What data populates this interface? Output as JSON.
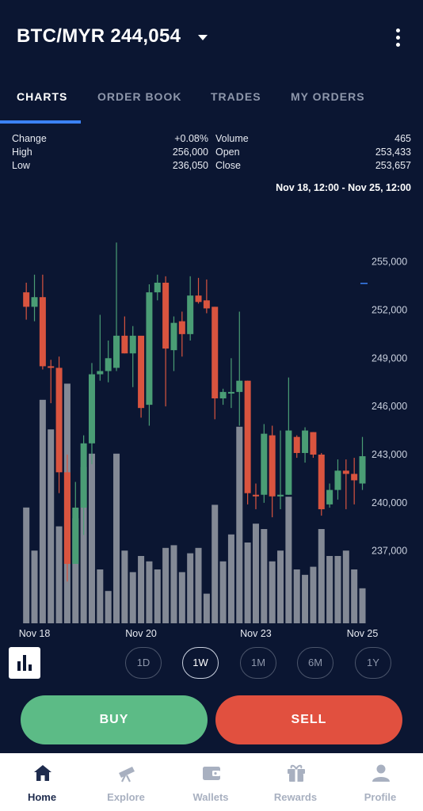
{
  "header": {
    "title": "BTC/MYR 244,054",
    "menu_icon": "more-vertical-icon",
    "caret_icon": "caret-down-icon"
  },
  "tabs": [
    {
      "label": "CHARTS",
      "active": true
    },
    {
      "label": "ORDER BOOK",
      "active": false
    },
    {
      "label": "TRADES",
      "active": false
    },
    {
      "label": "MY ORDERS",
      "active": false
    }
  ],
  "stats": {
    "change_label": "Change",
    "change_value": "+0.08%",
    "high_label": "High",
    "high_value": "256,000",
    "low_label": "Low",
    "low_value": "236,050",
    "volume_label": "Volume",
    "volume_value": "465",
    "open_label": "Open",
    "open_value": "253,433",
    "close_label": "Close",
    "close_value": "253,657"
  },
  "range_text": "Nov 18, 12:00 - Nov 25, 12:00",
  "chart_data": {
    "type": "candlestick",
    "y_ticks": [
      "255,000",
      "252,000",
      "249,000",
      "246,000",
      "243,000",
      "240,000",
      "237,000"
    ],
    "y_tick_values": [
      255000,
      252000,
      249000,
      246000,
      243000,
      240000,
      237000
    ],
    "ylim": [
      232500,
      257000
    ],
    "x_ticks": [
      {
        "label": "Nov 18",
        "index": 1
      },
      {
        "label": "Nov 20",
        "index": 14
      },
      {
        "label": "Nov 23",
        "index": 28
      },
      {
        "label": "Nov 25",
        "index": 41
      }
    ],
    "colors": {
      "up": "#4a9d75",
      "down": "#d9543f",
      "volume": "#8a8f9b"
    },
    "candles": [
      {
        "o": 253100,
        "c": 252200,
        "h": 253700,
        "l": 251400,
        "v": 0.43
      },
      {
        "o": 252200,
        "c": 252800,
        "h": 254200,
        "l": 251300,
        "v": 0.27
      },
      {
        "o": 252800,
        "c": 248500,
        "h": 254200,
        "l": 248300,
        "v": 0.83
      },
      {
        "o": 248500,
        "c": 248400,
        "h": 248900,
        "l": 246200,
        "v": 0.72
      },
      {
        "o": 248400,
        "c": 241900,
        "h": 249100,
        "l": 240600,
        "v": 0.36
      },
      {
        "o": 241900,
        "c": 236200,
        "h": 243000,
        "l": 235100,
        "v": 0.89
      },
      {
        "o": 236200,
        "c": 239700,
        "h": 241300,
        "l": 236200,
        "v": 0.39
      },
      {
        "o": 239700,
        "c": 243700,
        "h": 244200,
        "l": 238000,
        "v": 0.58
      },
      {
        "o": 243700,
        "c": 248000,
        "h": 248700,
        "l": 242400,
        "v": 0.63
      },
      {
        "o": 248000,
        "c": 248200,
        "h": 251700,
        "l": 247600,
        "v": 0.2
      },
      {
        "o": 248200,
        "c": 249000,
        "h": 250100,
        "l": 247500,
        "v": 0.12
      },
      {
        "o": 248400,
        "c": 250400,
        "h": 256200,
        "l": 248200,
        "v": 0.63
      },
      {
        "o": 250400,
        "c": 249300,
        "h": 251600,
        "l": 249300,
        "v": 0.27
      },
      {
        "o": 249300,
        "c": 250400,
        "h": 251000,
        "l": 247200,
        "v": 0.19
      },
      {
        "o": 250400,
        "c": 245900,
        "h": 250300,
        "l": 245300,
        "v": 0.25
      },
      {
        "o": 246100,
        "c": 253100,
        "h": 253600,
        "l": 244800,
        "v": 0.23
      },
      {
        "o": 253100,
        "c": 253700,
        "h": 254200,
        "l": 252600,
        "v": 0.2
      },
      {
        "o": 253700,
        "c": 249600,
        "h": 254100,
        "l": 246000,
        "v": 0.28
      },
      {
        "o": 249500,
        "c": 251200,
        "h": 251600,
        "l": 248200,
        "v": 0.29
      },
      {
        "o": 251300,
        "c": 250500,
        "h": 251900,
        "l": 249100,
        "v": 0.19
      },
      {
        "o": 250500,
        "c": 252900,
        "h": 254100,
        "l": 250100,
        "v": 0.26
      },
      {
        "o": 252900,
        "c": 252500,
        "h": 254000,
        "l": 252400,
        "v": 0.28
      },
      {
        "o": 252600,
        "c": 252100,
        "h": 253900,
        "l": 251800,
        "v": 0.11
      },
      {
        "o": 252200,
        "c": 246500,
        "h": 252200,
        "l": 245200,
        "v": 0.44
      },
      {
        "o": 246500,
        "c": 246900,
        "h": 247100,
        "l": 246100,
        "v": 0.23
      },
      {
        "o": 246800,
        "c": 246900,
        "h": 249000,
        "l": 245900,
        "v": 0.33
      },
      {
        "o": 246900,
        "c": 247600,
        "h": 251900,
        "l": 244800,
        "v": 0.73
      },
      {
        "o": 247600,
        "c": 240600,
        "h": 247600,
        "l": 239900,
        "v": 0.3
      },
      {
        "o": 240500,
        "c": 240400,
        "h": 241200,
        "l": 239600,
        "v": 0.37
      },
      {
        "o": 240500,
        "c": 244300,
        "h": 244900,
        "l": 240000,
        "v": 0.35
      },
      {
        "o": 244200,
        "c": 240400,
        "h": 244800,
        "l": 239100,
        "v": 0.23
      },
      {
        "o": 240400,
        "c": 240500,
        "h": 244500,
        "l": 239600,
        "v": 0.27
      },
      {
        "o": 240500,
        "c": 244500,
        "h": 247800,
        "l": 240500,
        "v": 0.47
      },
      {
        "o": 244100,
        "c": 243100,
        "h": 244200,
        "l": 242800,
        "v": 0.2
      },
      {
        "o": 243100,
        "c": 244500,
        "h": 244700,
        "l": 242500,
        "v": 0.18
      },
      {
        "o": 244400,
        "c": 243000,
        "h": 244400,
        "l": 242800,
        "v": 0.21
      },
      {
        "o": 243000,
        "c": 239600,
        "h": 243100,
        "l": 239200,
        "v": 0.35
      },
      {
        "o": 239900,
        "c": 240800,
        "h": 241200,
        "l": 239700,
        "v": 0.25
      },
      {
        "o": 240800,
        "c": 242000,
        "h": 242700,
        "l": 240200,
        "v": 0.25
      },
      {
        "o": 242000,
        "c": 241800,
        "h": 242700,
        "l": 239600,
        "v": 0.27
      },
      {
        "o": 241800,
        "c": 241400,
        "h": 242800,
        "l": 239900,
        "v": 0.2
      },
      {
        "o": 241200,
        "c": 242900,
        "h": 244100,
        "l": 240800,
        "v": 0.13
      }
    ]
  },
  "chart_type_icon": "bar-chart-icon",
  "timeframes": [
    {
      "label": "1D",
      "active": false
    },
    {
      "label": "1W",
      "active": true
    },
    {
      "label": "1M",
      "active": false
    },
    {
      "label": "6M",
      "active": false
    },
    {
      "label": "1Y",
      "active": false
    }
  ],
  "actions": {
    "buy_label": "BUY",
    "sell_label": "SELL"
  },
  "nav": [
    {
      "label": "Home",
      "icon": "home-icon",
      "active": true
    },
    {
      "label": "Explore",
      "icon": "telescope-icon",
      "active": false
    },
    {
      "label": "Wallets",
      "icon": "wallet-icon",
      "active": false
    },
    {
      "label": "Rewards",
      "icon": "gift-icon",
      "active": false
    },
    {
      "label": "Profile",
      "icon": "profile-icon",
      "active": false
    }
  ]
}
